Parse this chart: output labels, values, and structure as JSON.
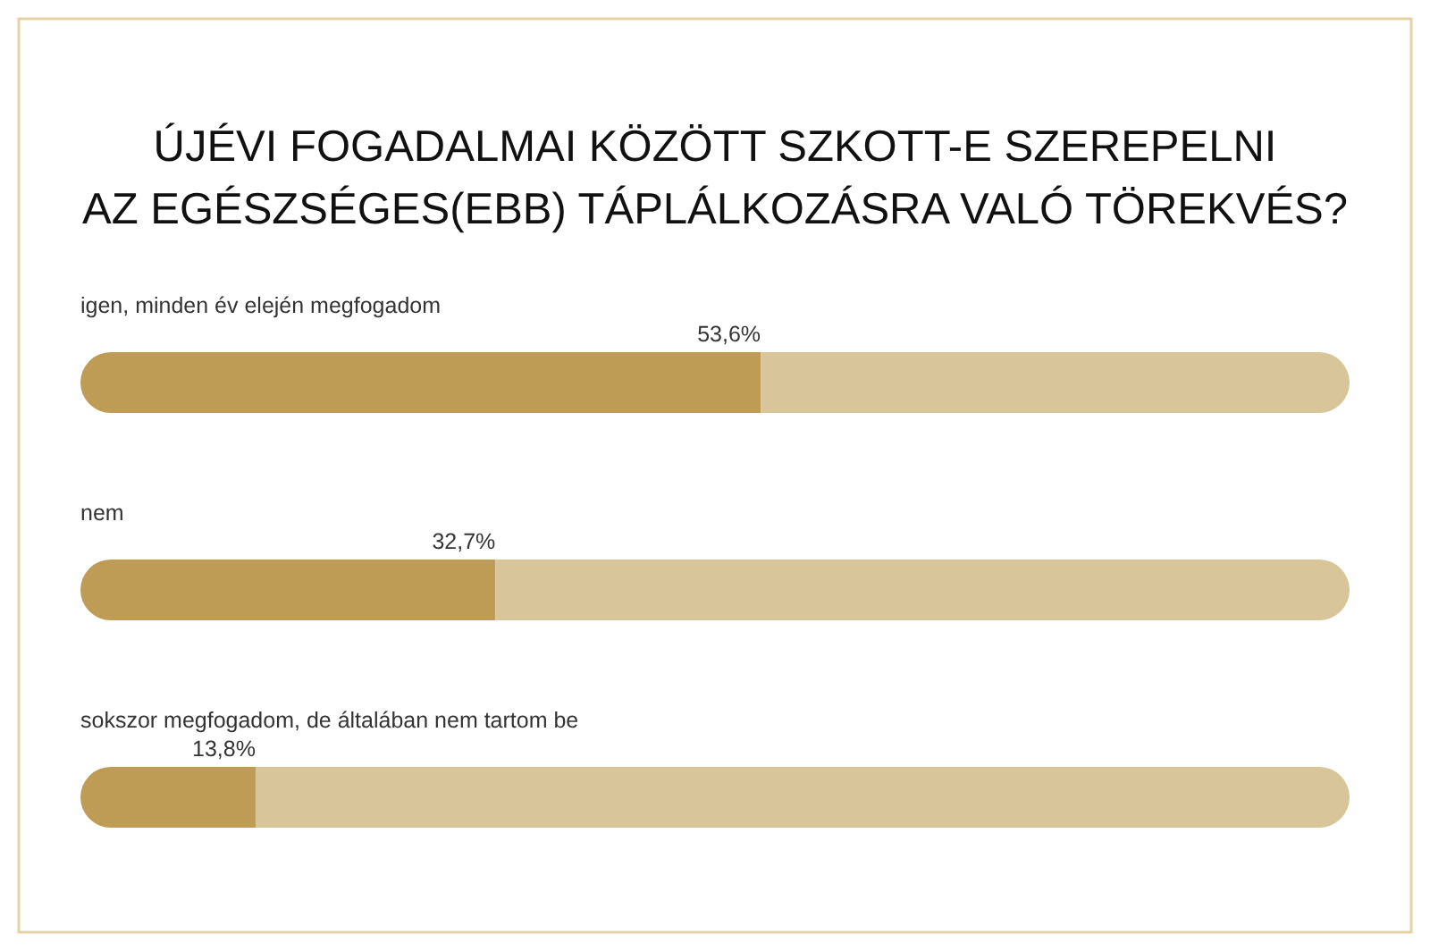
{
  "chart_data": {
    "type": "bar",
    "orientation": "horizontal",
    "stacked": true,
    "title": "ÚJÉVI FOGADALMAI KÖZÖTT SZKOTT-E SZEREPELNI\nAZ EGÉSZSÉGES(EBB) TÁPLÁLKOZÁSRA VALÓ TÖREKVÉS?",
    "categories": [
      "igen, minden év elején megfogadom",
      "nem",
      "sokszor megfogadom, de általában nem tartom be"
    ],
    "series": [
      {
        "color": "#be9c55",
        "values": [
          53.6,
          32.7,
          13.8
        ],
        "value_labels": [
          "53,6%",
          "32,7%",
          "13,8%"
        ]
      },
      {
        "color": "#d9c59a",
        "values": [
          46.4,
          67.3,
          86.2
        ]
      }
    ],
    "xlim": [
      0,
      100
    ]
  }
}
